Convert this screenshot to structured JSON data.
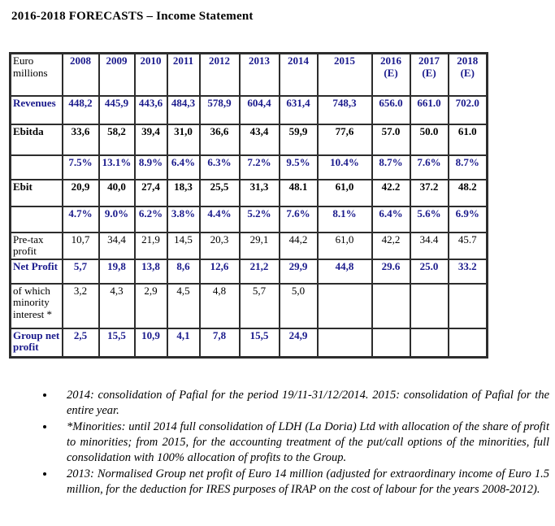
{
  "title": "2016-2018 FORECASTS – Income Statement",
  "table": {
    "corner_label": "Euro millions",
    "columns": [
      "2008",
      "2009",
      "2010",
      "2011",
      "2012",
      "2013",
      "2014",
      "2015",
      "2016\n(E)",
      "2017\n(E)",
      "2018\n(E)"
    ],
    "rows": [
      {
        "label": "Revenues",
        "style": "navy",
        "values": [
          "448,2",
          "445,9",
          "443,6",
          "484,3",
          "578,9",
          "604,4",
          "631,4",
          "748,3",
          "656.0",
          "661.0",
          "702.0"
        ]
      },
      {
        "label": "Ebitda",
        "style": "black-bold",
        "values": [
          "33,6",
          "58,2",
          "39,4",
          "31,0",
          "36,6",
          "43,4",
          "59,9",
          "77,6",
          "57.0",
          "50.0",
          "61.0"
        ]
      },
      {
        "label": "",
        "style": "navy",
        "values": [
          "7.5%",
          "13.1%",
          "8.9%",
          "6.4%",
          "6.3%",
          "7.2%",
          "9.5%",
          "10.4%",
          "8.7%",
          "7.6%",
          "8.7%"
        ]
      },
      {
        "label": "Ebit",
        "style": "black-bold",
        "values": [
          "20,9",
          "40,0",
          "27,4",
          "18,3",
          "25,5",
          "31,3",
          "48.1",
          "61,0",
          "42.2",
          "37.2",
          "48.2"
        ]
      },
      {
        "label": "",
        "style": "navy",
        "values": [
          "4.7%",
          "9.0%",
          "6.2%",
          "3.8%",
          "4.4%",
          "5.2%",
          "7.6%",
          "8.1%",
          "6.4%",
          "5.6%",
          "6.9%"
        ]
      },
      {
        "label": "Pre-tax profit",
        "style": "plain",
        "values": [
          "10,7",
          "34,4",
          "21,9",
          "14,5",
          "20,3",
          "29,1",
          "44,2",
          "61,0",
          "42,2",
          "34.4",
          "45.7"
        ]
      },
      {
        "label": "Net Profit",
        "style": "navy",
        "values": [
          "5,7",
          "19,8",
          "13,8",
          "8,6",
          "12,6",
          "21,2",
          "29,9",
          "44,8",
          "29.6",
          "25.0",
          "33.2"
        ]
      },
      {
        "label": "of which minority interest *",
        "style": "plain",
        "values": [
          "3,2",
          "4,3",
          "2,9",
          "4,5",
          "4,8",
          "5,7",
          "5,0",
          "",
          "",
          "",
          ""
        ]
      },
      {
        "label": "Group net profit",
        "style": "navy",
        "values": [
          "2,5",
          "15,5",
          "10,9",
          "4,1",
          "7,8",
          "15,5",
          "24,9",
          "",
          "",
          "",
          ""
        ]
      }
    ]
  },
  "footnotes": [
    "2014: consolidation of Pafial for the period 19/11-31/12/2014.  2015: consolidation of Pafial for the entire year.",
    "*Minorities:  until 2014 full consolidation of LDH (La Doria) Ltd with allocation of the share of  profit to minorities; from 2015, for the accounting treatment of the put/call options of the minorities, full consolidation with 100% allocation of profits to the Group.",
    "2013: Normalised Group net profit of Euro 14 million (adjusted for extraordinary income of Euro 1.5 million, for the deduction for IRES purposes of IRAP on the cost of labour for the years 2008-2012)."
  ],
  "colors": {
    "accent_navy": "#1a1a8c",
    "border": "#2d2d2d",
    "text": "#000000"
  }
}
